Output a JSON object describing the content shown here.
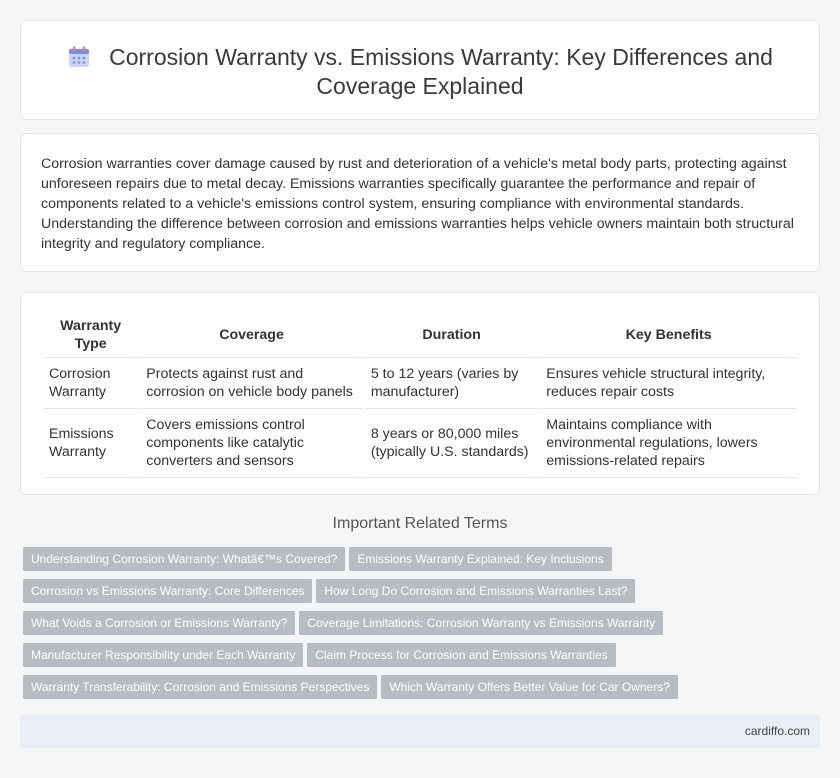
{
  "header": {
    "title": "Corrosion Warranty vs. Emissions Warranty: Key Differences and Coverage Explained",
    "icon": "calendar-icon"
  },
  "intro": {
    "text": "Corrosion warranties cover damage caused by rust and deterioration of a vehicle's metal body parts, protecting against unforeseen repairs due to metal decay. Emissions warranties specifically guarantee the performance and repair of components related to a vehicle's emissions control system, ensuring compliance with environmental standards. Understanding the difference between corrosion and emissions warranties helps vehicle owners maintain both structural integrity and regulatory compliance."
  },
  "table": {
    "headers": [
      "Warranty Type",
      "Coverage",
      "Duration",
      "Key Benefits"
    ],
    "rows": [
      [
        "Corrosion Warranty",
        "Protects against rust and corrosion on vehicle body panels",
        "5 to 12 years (varies by manufacturer)",
        "Ensures vehicle structural integrity, reduces repair costs"
      ],
      [
        "Emissions Warranty",
        "Covers emissions control components like catalytic converters and sensors",
        "8 years or 80,000 miles (typically U.S. standards)",
        "Maintains compliance with environmental regulations, lowers emissions-related repairs"
      ]
    ]
  },
  "related": {
    "title": "Important Related Terms",
    "tags": [
      [
        "Understanding Corrosion Warranty: Whatâ€™s Covered?",
        "Emissions Warranty Explained: Key Inclusions"
      ],
      [
        "Corrosion vs Emissions Warranty: Core Differences",
        "How Long Do Corrosion and Emissions Warranties Last?"
      ],
      [
        "What Voids a Corrosion or Emissions Warranty?",
        "Coverage Limitations: Corrosion Warranty vs Emissions Warranty"
      ],
      [
        "Manufacturer Responsibility under Each Warranty",
        "Claim Process for Corrosion and Emissions Warranties"
      ],
      [
        "Warranty Transferability: Corrosion and Emissions Perspectives",
        "Which Warranty Offers Better Value for Car Owners?"
      ]
    ]
  },
  "footer": {
    "site": "cardiffo.com"
  },
  "colors": {
    "tag_bg": "#b7bcc2",
    "footer_bg": "#e9eef6",
    "icon_accent": "#7b8fe0"
  }
}
